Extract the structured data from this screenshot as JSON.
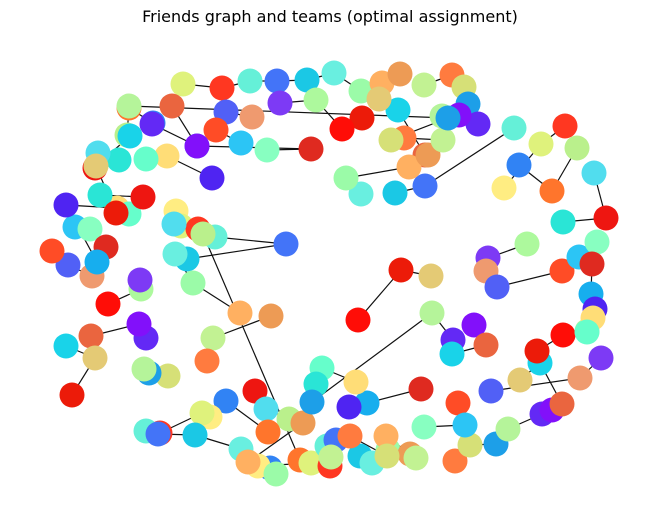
{
  "title": "Friends graph and teams (optimal assignment)",
  "graph": {
    "node_colors": [
      "#dff27c",
      "#ff3721",
      "#65f0d8",
      "#4374f8",
      "#1bc8e5",
      "#69efe0",
      "#9bfba8",
      "#ffb061",
      "#ed9b55",
      "#c2f293",
      "#ff7b3f",
      "#d6e077",
      "#1d9fe8",
      "#b5f49a",
      "#6329f5",
      "#8210fa",
      "#ea653f",
      "#19d3e9",
      "#e4ca75",
      "#ec1b09",
      "#ff0d07",
      "#adf99d",
      "#7d3af5",
      "#ef9a6f",
      "#5160f6",
      "#ff4c26",
      "#2cc5f5",
      "#88ffc1",
      "#df2a20",
      "#17aeee",
      "#4f24f2",
      "#ffdd77",
      "#66fecb",
      "#2ae5d6",
      "#ee1611",
      "#51ddee",
      "#baf08c",
      "#ff752c",
      "#3183f4",
      "#ffed82"
    ],
    "edges": [
      [
        "n1",
        "n2"
      ],
      [
        "n2",
        "n3"
      ],
      [
        "n3",
        "n4"
      ],
      [
        "n4",
        "n5"
      ],
      [
        "n5",
        "n6"
      ],
      [
        "n6",
        "n7"
      ],
      [
        "n7",
        "n8"
      ],
      [
        "n8",
        "n9"
      ],
      [
        "n10",
        "n11"
      ],
      [
        "n11",
        "n12"
      ],
      [
        "n12",
        "n13"
      ],
      [
        "n14",
        "n15"
      ],
      [
        "n15",
        "n16"
      ],
      [
        "n17",
        "n18"
      ],
      [
        "n18",
        "n19"
      ],
      [
        "n20",
        "n21"
      ],
      [
        "n21",
        "n22"
      ],
      [
        "n22",
        "n23"
      ],
      [
        "n24",
        "n25"
      ],
      [
        "n25",
        "n26"
      ],
      [
        "n26",
        "n27"
      ],
      [
        "n28",
        "n29"
      ],
      [
        "n29",
        "n30"
      ],
      [
        "n31",
        "n32"
      ],
      [
        "n32",
        "n33"
      ],
      [
        "n34",
        "n35"
      ],
      [
        "n35",
        "n36"
      ],
      [
        "n37",
        "n38"
      ],
      [
        "n38",
        "n39"
      ],
      [
        "n40",
        "n41"
      ],
      [
        "n41",
        "n42"
      ],
      [
        "n43",
        "n44"
      ],
      [
        "n44",
        "n45"
      ],
      [
        "n46",
        "n47"
      ],
      [
        "n47",
        "n48"
      ],
      [
        "n49",
        "n50"
      ],
      [
        "n50",
        "n51"
      ],
      [
        "n52",
        "n53"
      ],
      [
        "n53",
        "n54"
      ],
      [
        "n55",
        "n56"
      ],
      [
        "n56",
        "n57"
      ],
      [
        "n58",
        "n59"
      ],
      [
        "n59",
        "n60"
      ],
      [
        "n61",
        "n62"
      ],
      [
        "n62",
        "n63"
      ],
      [
        "n64",
        "n65"
      ],
      [
        "n65",
        "n66"
      ],
      [
        "n67",
        "n68"
      ],
      [
        "n68",
        "n69"
      ],
      [
        "n70",
        "n71"
      ],
      [
        "n71",
        "n72"
      ],
      [
        "n73",
        "n74"
      ],
      [
        "n74",
        "n75"
      ],
      [
        "n76",
        "n77"
      ],
      [
        "n77",
        "n78"
      ],
      [
        "n79",
        "n80"
      ],
      [
        "n80",
        "n81"
      ],
      [
        "n82",
        "n83"
      ],
      [
        "n83",
        "n84"
      ],
      [
        "n85",
        "n86"
      ],
      [
        "n86",
        "n87"
      ],
      [
        "n88",
        "n89"
      ],
      [
        "n89",
        "n90"
      ],
      [
        "n91",
        "n92"
      ],
      [
        "n92",
        "n93"
      ],
      [
        "n94",
        "n95"
      ],
      [
        "n95",
        "n96"
      ],
      [
        "n97",
        "n98"
      ],
      [
        "n98",
        "n99"
      ],
      [
        "n100",
        "n101"
      ],
      [
        "n101",
        "n102"
      ],
      [
        "n103",
        "n104"
      ],
      [
        "n104",
        "n105"
      ],
      [
        "n106",
        "n107"
      ],
      [
        "n107",
        "n108"
      ],
      [
        "n109",
        "n110"
      ],
      [
        "n110",
        "n111"
      ],
      [
        "n112",
        "n113"
      ],
      [
        "n113",
        "n114"
      ],
      [
        "n115",
        "n116"
      ],
      [
        "n116",
        "n117"
      ],
      [
        "n118",
        "n119"
      ],
      [
        "n119",
        "n120"
      ],
      [
        "n121",
        "n122"
      ],
      [
        "n122",
        "n123"
      ],
      [
        "n124",
        "n125"
      ],
      [
        "n125",
        "n126"
      ],
      [
        "n127",
        "n128"
      ],
      [
        "n128",
        "n129"
      ],
      [
        "n130",
        "n131"
      ],
      [
        "n131",
        "n132"
      ],
      [
        "n133",
        "n134"
      ],
      [
        "n134",
        "n135"
      ],
      [
        "n136",
        "n137"
      ],
      [
        "n137",
        "n138"
      ],
      [
        "n139",
        "n140"
      ],
      [
        "n140",
        "n141"
      ],
      [
        "n142",
        "n143"
      ],
      [
        "n143",
        "n144"
      ],
      [
        "n145",
        "n146"
      ],
      [
        "n146",
        "n147"
      ],
      [
        "n148",
        "n149"
      ],
      [
        "n149",
        "n150"
      ],
      [
        "n151",
        "n152"
      ],
      [
        "n152",
        "n153"
      ],
      [
        "n154",
        "n155"
      ],
      [
        "n155",
        "n156"
      ],
      [
        "n157",
        "n158"
      ],
      [
        "n158",
        "n159"
      ],
      [
        "n160",
        "n161"
      ],
      [
        "n161",
        "n162"
      ],
      [
        "n163",
        "n164"
      ],
      [
        "n164",
        "n165"
      ],
      [
        "n166",
        "n167"
      ],
      [
        "n167",
        "n168"
      ],
      [
        "n169",
        "n170"
      ],
      [
        "n170",
        "n171"
      ],
      [
        "n172",
        "n173"
      ],
      [
        "n173",
        "n174"
      ],
      [
        "n175",
        "n176"
      ],
      [
        "n176",
        "n177"
      ],
      [
        "n178",
        "n179"
      ],
      [
        "n179",
        "n180"
      ]
    ]
  }
}
